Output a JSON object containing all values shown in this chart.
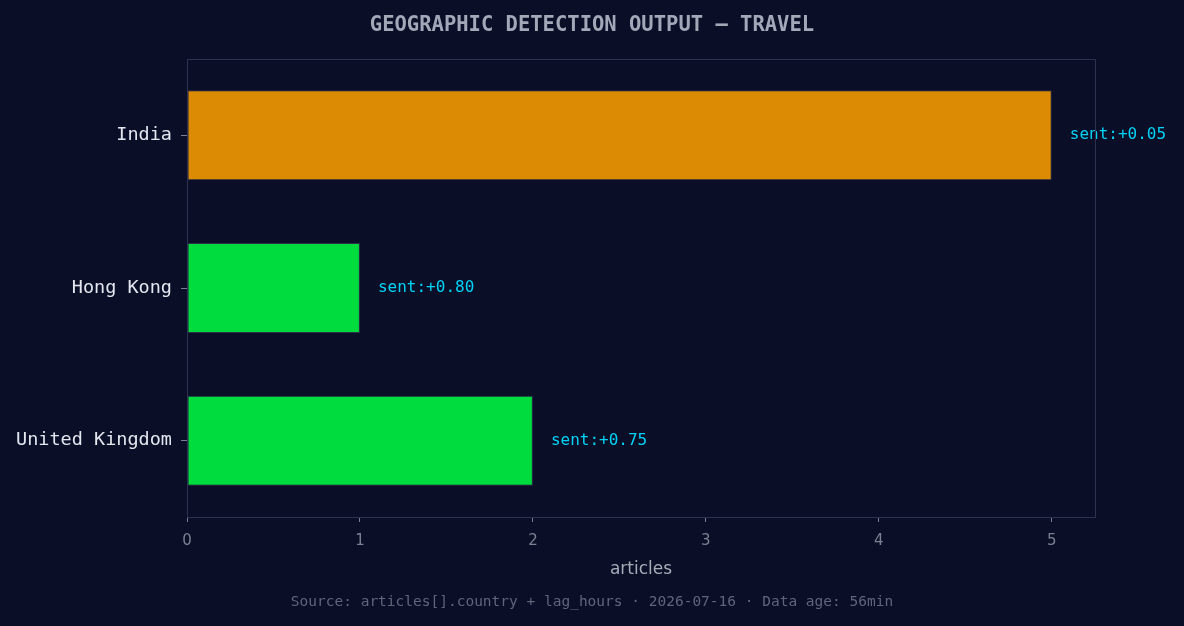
{
  "chart_data": {
    "type": "bar",
    "orientation": "horizontal",
    "title": "GEOGRAPHIC DETECTION OUTPUT — TRAVEL",
    "xlabel": "articles",
    "categories": [
      "India",
      "Hong Kong",
      "United Kingdom"
    ],
    "values": [
      5,
      1,
      2
    ],
    "colors": [
      "#db8c04",
      "#00db3e",
      "#00db3e"
    ],
    "xlim": [
      0,
      5.25
    ],
    "xticks": [
      0,
      1,
      2,
      3,
      4,
      5
    ],
    "grid": false,
    "legend": false,
    "annotations": [
      {
        "text": "sent:+0.05",
        "x": 5,
        "y": "India"
      },
      {
        "text": "sent:+0.80",
        "x": 1,
        "y": "Hong Kong"
      },
      {
        "text": "sent:+0.75",
        "x": 2,
        "y": "United Kingdom"
      },
      "Source: articles[].country + lag_hours · 2026-07-16 · Data age: 56min"
    ]
  }
}
